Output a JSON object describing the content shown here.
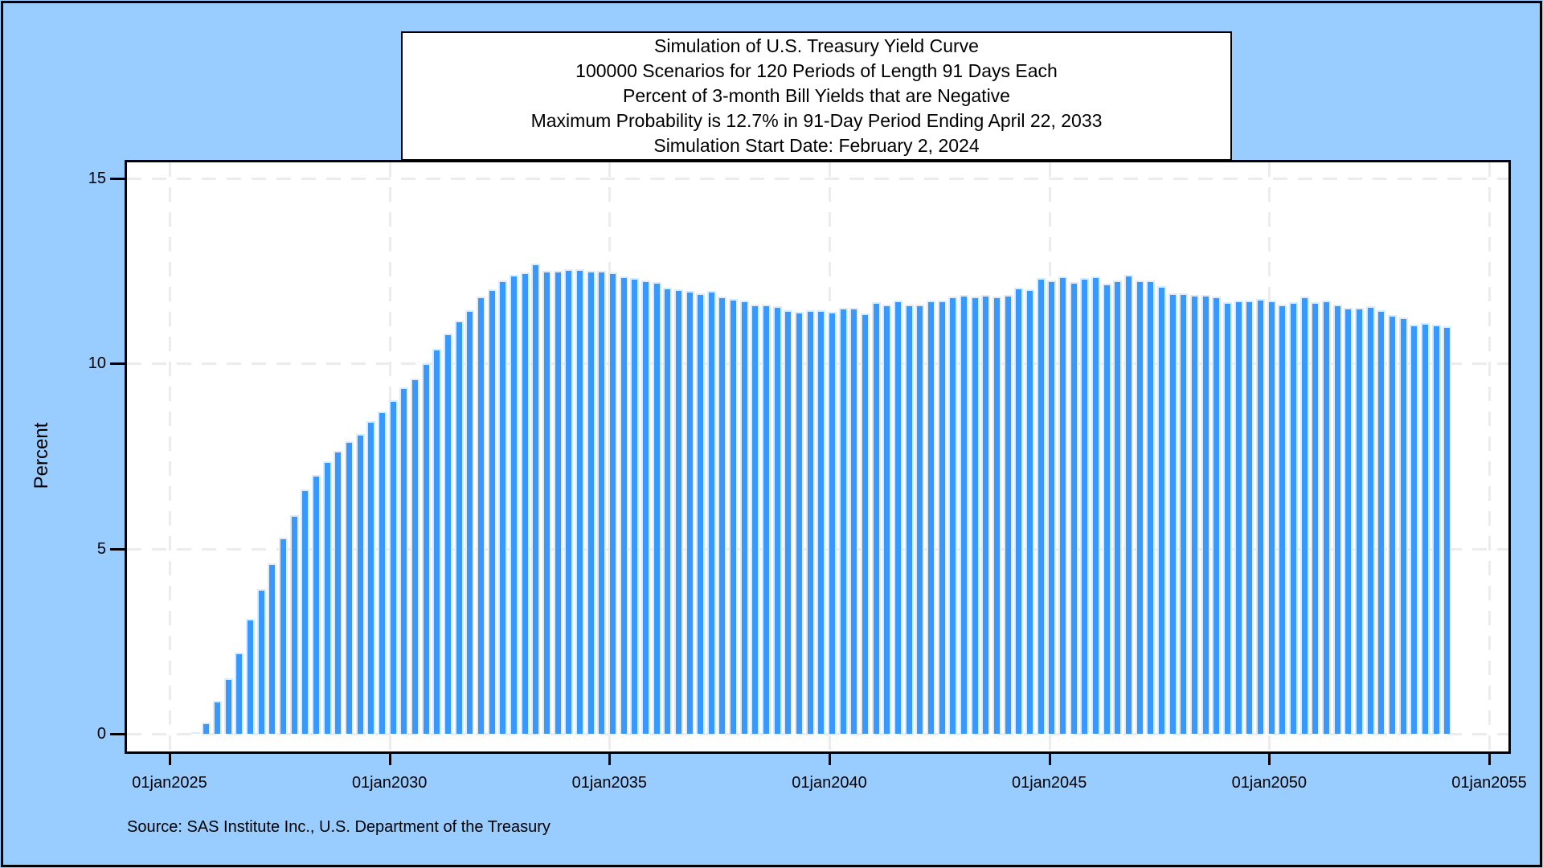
{
  "page": {
    "background_color": "#99ccff",
    "frame_color": "#000000"
  },
  "title_box": {
    "lines": [
      "Simulation of U.S. Treasury Yield Curve",
      "100000 Scenarios for 120 Periods of Length 91 Days Each",
      "Percent of 3-month Bill Yields that are Negative",
      "Maximum Probability is 12.7% in 91-Day Period Ending April 22, 2033",
      "Simulation Start Date: February 2, 2024"
    ]
  },
  "source_note": "Source: SAS Institute Inc., U.S. Department of the Treasury",
  "chart_data": {
    "type": "bar",
    "title": "Simulation of U.S. Treasury Yield Curve",
    "subtitle": "Percent of 3-month Bill Yields that are Negative",
    "ylabel": "Percent",
    "xlabel": "",
    "ylim": [
      0,
      15
    ],
    "yticks": [
      0,
      5,
      10,
      15
    ],
    "xtick_labels": [
      "01jan2025",
      "01jan2030",
      "01jan2035",
      "01jan2040",
      "01jan2045",
      "01jan2050",
      "01jan2055"
    ],
    "grid": true,
    "legend_position": "none",
    "n_periods": 120,
    "period_length_days": 91,
    "simulation_start_date": "February 2, 2024",
    "max_value": 12.7,
    "max_period_ending": "April 22, 2033",
    "bar_color": "#3898fc",
    "bar_outline_color": "#d9ebfd",
    "values": [
      0,
      0,
      0,
      0,
      0,
      0.05,
      0.3,
      0.9,
      1.5,
      2.2,
      3.1,
      3.9,
      4.6,
      5.3,
      5.9,
      6.6,
      7.0,
      7.35,
      7.65,
      7.9,
      8.1,
      8.45,
      8.7,
      9.0,
      9.35,
      9.6,
      10.0,
      10.4,
      10.8,
      11.15,
      11.45,
      11.8,
      12.0,
      12.25,
      12.4,
      12.45,
      12.7,
      12.5,
      12.5,
      12.55,
      12.55,
      12.5,
      12.5,
      12.45,
      12.35,
      12.3,
      12.25,
      12.2,
      12.05,
      12.0,
      11.95,
      11.9,
      11.95,
      11.8,
      11.75,
      11.7,
      11.6,
      11.6,
      11.55,
      11.45,
      11.4,
      11.45,
      11.45,
      11.4,
      11.5,
      11.5,
      11.35,
      11.65,
      11.6,
      11.7,
      11.6,
      11.6,
      11.7,
      11.7,
      11.8,
      11.85,
      11.8,
      11.85,
      11.8,
      11.85,
      12.05,
      12.0,
      12.3,
      12.25,
      12.35,
      12.2,
      12.3,
      12.35,
      12.15,
      12.25,
      12.4,
      12.25,
      12.25,
      12.1,
      11.9,
      11.9,
      11.85,
      11.85,
      11.8,
      11.65,
      11.7,
      11.7,
      11.75,
      11.7,
      11.6,
      11.65,
      11.8,
      11.65,
      11.7,
      11.6,
      11.5,
      11.5,
      11.55,
      11.45,
      11.3,
      11.25,
      11.05,
      11.1,
      11.05,
      11.0
    ]
  }
}
